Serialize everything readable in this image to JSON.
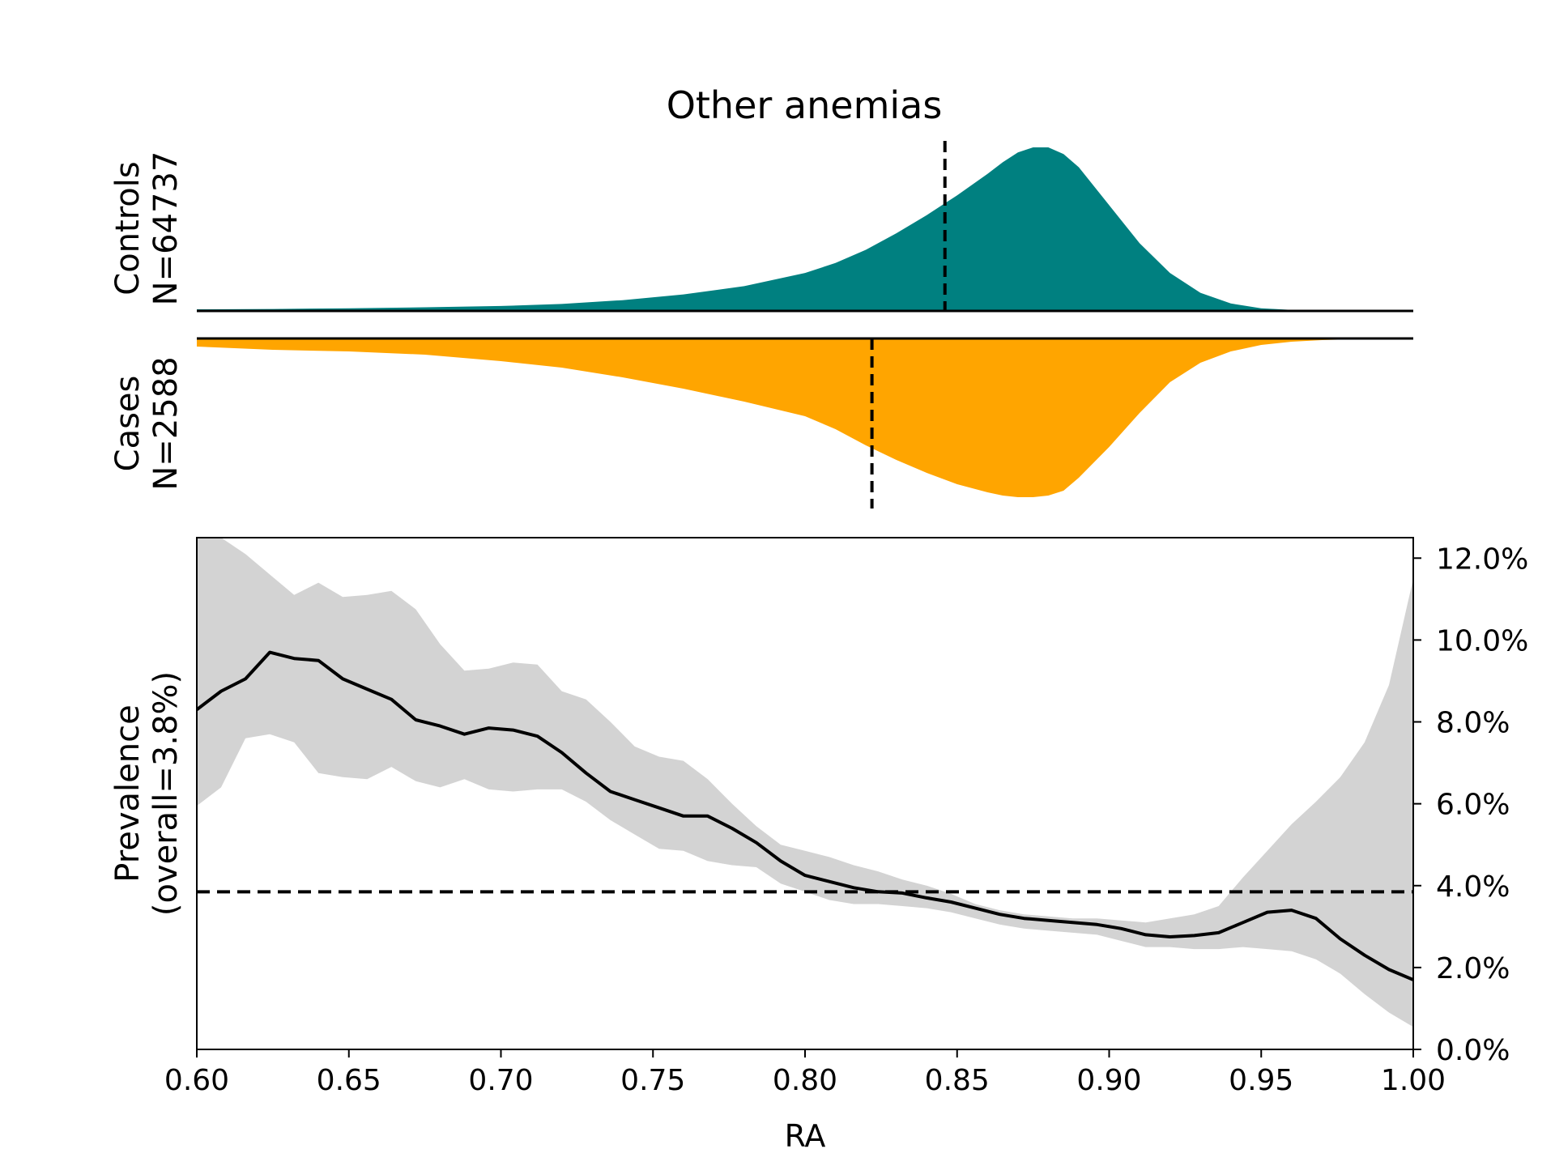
{
  "chart_data": {
    "type": "area",
    "title": "Other anemias",
    "colors": {
      "controls": "#008080",
      "cases": "#FFA500",
      "ci_band": "#D3D3D3",
      "line": "#000000"
    },
    "density": {
      "x": [
        0.6,
        0.625,
        0.65,
        0.675,
        0.7,
        0.72,
        0.74,
        0.76,
        0.78,
        0.8,
        0.81,
        0.82,
        0.83,
        0.84,
        0.85,
        0.86,
        0.865,
        0.87,
        0.875,
        0.88,
        0.885,
        0.89,
        0.9,
        0.91,
        0.92,
        0.93,
        0.94,
        0.95,
        0.96,
        0.97,
        0.98,
        1.0
      ],
      "controls": {
        "label_line1": "Controls",
        "label_line2": "N=64737",
        "median": 0.846,
        "values": [
          0.01,
          0.012,
          0.016,
          0.022,
          0.03,
          0.042,
          0.065,
          0.1,
          0.15,
          0.23,
          0.29,
          0.37,
          0.47,
          0.58,
          0.7,
          0.83,
          0.9,
          0.96,
          0.99,
          0.99,
          0.95,
          0.87,
          0.64,
          0.41,
          0.23,
          0.11,
          0.045,
          0.016,
          0.006,
          0.002,
          0.001,
          0.0
        ]
      },
      "cases": {
        "label_line1": "Cases",
        "label_line2": "N=2588",
        "median": 0.822,
        "values": [
          0.05,
          0.07,
          0.08,
          0.1,
          0.14,
          0.18,
          0.24,
          0.31,
          0.39,
          0.48,
          0.56,
          0.66,
          0.75,
          0.83,
          0.9,
          0.95,
          0.97,
          0.98,
          0.98,
          0.97,
          0.94,
          0.86,
          0.67,
          0.46,
          0.27,
          0.15,
          0.08,
          0.04,
          0.02,
          0.01,
          0.005,
          0.0
        ]
      }
    },
    "prevalence": {
      "ylabel_line1": "Prevalence",
      "ylabel_line2": "(overall=3.8%)",
      "xlabel": "RA",
      "overall": 3.85,
      "xlim": [
        0.6,
        1.0
      ],
      "ylim": [
        0,
        12.5
      ],
      "x_ticks": [
        "0.60",
        "0.65",
        "0.70",
        "0.75",
        "0.80",
        "0.85",
        "0.90",
        "0.95",
        "1.00"
      ],
      "y_ticks": [
        "0.0%",
        "2.0%",
        "4.0%",
        "6.0%",
        "8.0%",
        "10.0%",
        "12.0%"
      ],
      "x": [
        0.6,
        0.608,
        0.616,
        0.624,
        0.632,
        0.64,
        0.648,
        0.656,
        0.664,
        0.672,
        0.68,
        0.688,
        0.696,
        0.704,
        0.712,
        0.72,
        0.728,
        0.736,
        0.744,
        0.752,
        0.76,
        0.768,
        0.776,
        0.784,
        0.792,
        0.8,
        0.808,
        0.816,
        0.824,
        0.832,
        0.84,
        0.848,
        0.856,
        0.864,
        0.872,
        0.88,
        0.888,
        0.896,
        0.904,
        0.912,
        0.92,
        0.928,
        0.936,
        0.944,
        0.952,
        0.96,
        0.968,
        0.976,
        0.984,
        0.992,
        1.0
      ],
      "line": [
        8.3,
        8.75,
        9.05,
        9.7,
        9.55,
        9.5,
        9.05,
        8.8,
        8.55,
        8.05,
        7.9,
        7.7,
        7.85,
        7.8,
        7.65,
        7.25,
        6.75,
        6.3,
        6.1,
        5.9,
        5.7,
        5.7,
        5.4,
        5.05,
        4.6,
        4.25,
        4.1,
        3.95,
        3.85,
        3.82,
        3.7,
        3.6,
        3.45,
        3.3,
        3.2,
        3.15,
        3.1,
        3.05,
        2.95,
        2.8,
        2.75,
        2.78,
        2.85,
        3.1,
        3.35,
        3.4,
        3.2,
        2.7,
        2.3,
        1.95,
        1.7
      ],
      "upper": [
        12.5,
        12.5,
        12.1,
        11.6,
        11.1,
        11.4,
        11.05,
        11.1,
        11.2,
        10.75,
        9.9,
        9.25,
        9.3,
        9.45,
        9.4,
        8.75,
        8.55,
        8.0,
        7.4,
        7.15,
        7.05,
        6.6,
        6.0,
        5.45,
        5.0,
        4.85,
        4.7,
        4.5,
        4.35,
        4.15,
        4.0,
        3.8,
        3.55,
        3.4,
        3.3,
        3.25,
        3.2,
        3.2,
        3.15,
        3.1,
        3.2,
        3.3,
        3.5,
        4.2,
        4.85,
        5.5,
        6.05,
        6.65,
        7.5,
        8.9,
        11.5
      ],
      "lower": [
        5.95,
        6.4,
        7.6,
        7.7,
        7.5,
        6.75,
        6.65,
        6.6,
        6.9,
        6.55,
        6.4,
        6.6,
        6.35,
        6.3,
        6.35,
        6.35,
        6.05,
        5.6,
        5.25,
        4.9,
        4.85,
        4.6,
        4.5,
        4.45,
        4.05,
        3.85,
        3.65,
        3.55,
        3.55,
        3.5,
        3.45,
        3.35,
        3.2,
        3.05,
        2.95,
        2.9,
        2.85,
        2.8,
        2.65,
        2.5,
        2.5,
        2.45,
        2.45,
        2.5,
        2.45,
        2.4,
        2.2,
        1.85,
        1.35,
        0.9,
        0.55
      ]
    }
  }
}
